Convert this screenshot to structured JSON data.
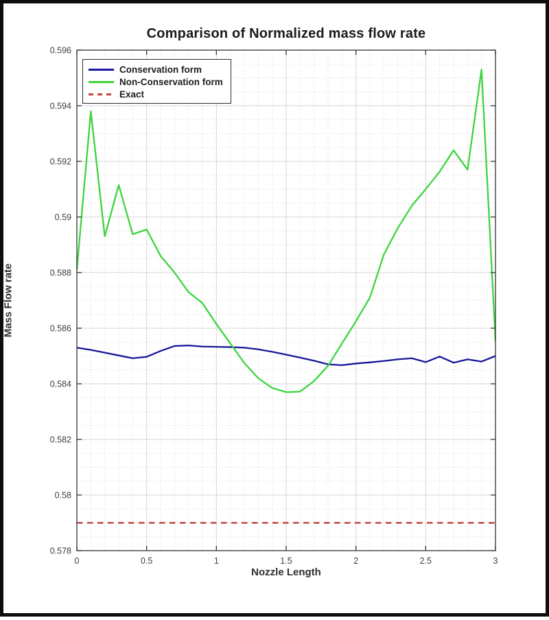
{
  "figure": {
    "title": "Comparison of Normalized mass flow rate",
    "xlabel": "Nozzle Length",
    "ylabel": "Mass Flow rate"
  },
  "legend": {
    "position": "top-left",
    "items": [
      {
        "label": "Conservation form",
        "color": "#16169b",
        "line_style": "solid"
      },
      {
        "label": "Non-Conservation form",
        "color": "#3cd43c",
        "line_style": "solid"
      },
      {
        "label": "Exact",
        "color": "#bf4646",
        "line_style": "dashed"
      }
    ]
  },
  "chart_data": {
    "type": "line",
    "title": "Comparison of Normalized mass flow rate",
    "xlabel": "Nozzle Length",
    "ylabel": "Mass Flow rate",
    "xlim": [
      0,
      3
    ],
    "ylim": [
      0.578,
      0.596
    ],
    "grid": {
      "major": true,
      "minor": true,
      "minor_x_step": 0.1,
      "minor_y_step": 0.0005
    },
    "x_ticks": {
      "values": [
        0,
        0.5,
        1,
        1.5,
        2,
        2.5,
        3
      ],
      "labels": [
        "0",
        "0.5",
        "1",
        "1.5",
        "2",
        "2.5",
        "3"
      ]
    },
    "y_ticks": {
      "values": [
        0.578,
        0.58,
        0.582,
        0.584,
        0.586,
        0.588,
        0.59,
        0.592,
        0.594,
        0.596
      ],
      "labels": [
        "0.578",
        "0.58",
        "0.582",
        "0.584",
        "0.586",
        "0.588",
        "0.59",
        "0.592",
        "0.594",
        "0.596"
      ]
    },
    "x": [
      0,
      0.1,
      0.2,
      0.3,
      0.4,
      0.5,
      0.6,
      0.7,
      0.8,
      0.9,
      1.0,
      1.1,
      1.2,
      1.3,
      1.4,
      1.5,
      1.6,
      1.7,
      1.8,
      1.9,
      2.0,
      2.1,
      2.2,
      2.3,
      2.4,
      2.5,
      2.6,
      2.7,
      2.8,
      2.9,
      3.0
    ],
    "series": [
      {
        "name": "Conservation form",
        "color": "#16169b",
        "line_style": "solid",
        "line_width": 2.3,
        "values": [
          0.5853,
          0.58522,
          0.58512,
          0.58502,
          0.58492,
          0.58497,
          0.58518,
          0.58536,
          0.58538,
          0.58534,
          0.58533,
          0.58532,
          0.5853,
          0.58524,
          0.58515,
          0.58505,
          0.58494,
          0.58483,
          0.5847,
          0.58467,
          0.58473,
          0.58477,
          0.58482,
          0.58488,
          0.58492,
          0.58478,
          0.58498,
          0.58476,
          0.58488,
          0.5848,
          0.585
        ]
      },
      {
        "name": "Non-Conservation form",
        "color": "#3cd43c",
        "line_style": "solid",
        "line_width": 2.3,
        "values": [
          0.5881,
          0.5938,
          0.5893,
          0.59115,
          0.58938,
          0.58955,
          0.5886,
          0.588,
          0.5873,
          0.5869,
          0.58615,
          0.58545,
          0.58475,
          0.5842,
          0.58385,
          0.5837,
          0.58372,
          0.5841,
          0.58465,
          0.58545,
          0.58625,
          0.5871,
          0.58865,
          0.5896,
          0.5904,
          0.591,
          0.59163,
          0.5924,
          0.5917,
          0.5953,
          0.58555
        ]
      },
      {
        "name": "Exact",
        "color": "#bf4646",
        "line_style": "dashed",
        "line_width": 2.6,
        "constant": 0.579
      }
    ],
    "legend_position": "top-left"
  },
  "style": {
    "axis_color": "#333333",
    "tick_label_color": "#3d3d3d",
    "major_grid_color": "#d6d6d6",
    "minor_grid_color": "#dedede",
    "background": "#ffffff"
  }
}
